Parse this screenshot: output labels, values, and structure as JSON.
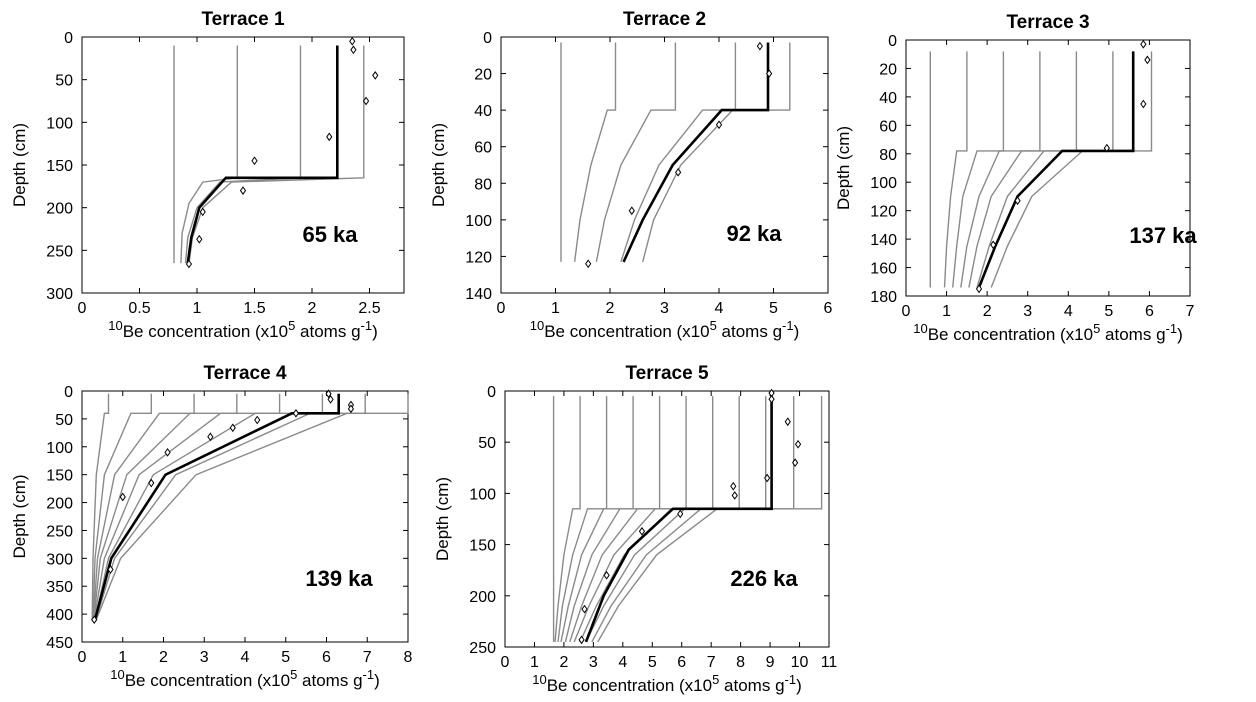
{
  "chart_data": [
    {
      "type": "line",
      "title": "Terrace 1",
      "xlabel": {
        "pre": "",
        "sup1": "10",
        "mid": "Be concentration (x10",
        "sup2": "5",
        "post": " atoms g",
        "sup3": "-1",
        "end": ")"
      },
      "ylabel": "Depth (cm)",
      "xlim": [
        0,
        2.8
      ],
      "ylim": [
        0,
        300
      ],
      "xticks": [
        "0",
        "0.5",
        "1",
        "1.5",
        "2",
        "2.5"
      ],
      "yticks": [
        "0",
        "50",
        "100",
        "150",
        "200",
        "250",
        "300"
      ],
      "age_label": "65 ka",
      "model_curves": [
        [
          [
            0.8,
            10
          ],
          [
            0.8,
            265
          ]
        ],
        [
          [
            1.35,
            10
          ],
          [
            1.35,
            165
          ],
          [
            1.05,
            170
          ],
          [
            0.93,
            195
          ],
          [
            0.87,
            230
          ],
          [
            0.86,
            265
          ]
        ],
        [
          [
            1.9,
            10
          ],
          [
            1.9,
            165
          ],
          [
            1.2,
            170
          ],
          [
            1.0,
            200
          ],
          [
            0.92,
            235
          ],
          [
            0.9,
            265
          ]
        ],
        [
          [
            2.45,
            10
          ],
          [
            2.45,
            165
          ],
          [
            1.3,
            170
          ],
          [
            1.05,
            200
          ],
          [
            0.96,
            235
          ],
          [
            0.93,
            265
          ]
        ]
      ],
      "best_fit": [
        [
          2.22,
          10
        ],
        [
          2.22,
          165
        ],
        [
          1.25,
          165
        ],
        [
          1.02,
          200
        ],
        [
          0.95,
          235
        ],
        [
          0.92,
          265
        ]
      ],
      "samples": [
        [
          2.35,
          5
        ],
        [
          2.36,
          15
        ],
        [
          2.55,
          45
        ],
        [
          2.47,
          75
        ],
        [
          2.15,
          117
        ],
        [
          1.5,
          145
        ],
        [
          1.4,
          180
        ],
        [
          1.05,
          205
        ],
        [
          1.02,
          237
        ],
        [
          0.93,
          266
        ]
      ]
    },
    {
      "type": "line",
      "title": "Terrace 2",
      "xlabel": {
        "pre": "",
        "sup1": "10",
        "mid": "Be concentration (x10",
        "sup2": "5",
        "post": " atoms g",
        "sup3": "-1",
        "end": ")"
      },
      "ylabel": "Depth (cm)",
      "xlim": [
        0,
        6
      ],
      "ylim": [
        0,
        140
      ],
      "xticks": [
        "0",
        "1",
        "2",
        "3",
        "4",
        "5",
        "6"
      ],
      "yticks": [
        "0",
        "20",
        "40",
        "60",
        "80",
        "100",
        "120",
        "140"
      ],
      "age_label": "92 ka",
      "model_curves": [
        [
          [
            1.1,
            3
          ],
          [
            1.1,
            123
          ]
        ],
        [
          [
            2.1,
            3
          ],
          [
            2.1,
            40
          ],
          [
            1.95,
            40
          ],
          [
            1.65,
            70
          ],
          [
            1.45,
            100
          ],
          [
            1.35,
            123
          ]
        ],
        [
          [
            3.2,
            3
          ],
          [
            3.2,
            40
          ],
          [
            2.75,
            40
          ],
          [
            2.2,
            70
          ],
          [
            1.9,
            100
          ],
          [
            1.75,
            123
          ]
        ],
        [
          [
            4.3,
            3
          ],
          [
            4.3,
            40
          ],
          [
            3.7,
            40
          ],
          [
            2.9,
            70
          ],
          [
            2.45,
            100
          ],
          [
            2.2,
            123
          ]
        ],
        [
          [
            5.3,
            3
          ],
          [
            5.3,
            40
          ],
          [
            4.25,
            40
          ],
          [
            3.3,
            70
          ],
          [
            2.8,
            100
          ],
          [
            2.6,
            123
          ]
        ]
      ],
      "best_fit": [
        [
          4.9,
          3
        ],
        [
          4.9,
          40
        ],
        [
          4.05,
          40
        ],
        [
          3.15,
          70
        ],
        [
          2.6,
          100
        ],
        [
          2.25,
          123
        ]
      ],
      "samples": [
        [
          4.75,
          5
        ],
        [
          4.92,
          20
        ],
        [
          4.0,
          48
        ],
        [
          3.25,
          74
        ],
        [
          2.4,
          95
        ],
        [
          1.6,
          124
        ]
      ]
    },
    {
      "type": "line",
      "title": "Terrace 3",
      "xlabel": {
        "pre": "",
        "sup1": "10",
        "mid": "Be concentration (x10",
        "sup2": "5",
        "post": " atoms g",
        "sup3": "-1",
        "end": ")"
      },
      "ylabel": "Depth (cm)",
      "xlim": [
        0,
        7
      ],
      "ylim": [
        0,
        180
      ],
      "xticks": [
        "0",
        "1",
        "2",
        "3",
        "4",
        "5",
        "6",
        "7"
      ],
      "yticks": [
        "0",
        "20",
        "40",
        "60",
        "80",
        "100",
        "120",
        "140",
        "160",
        "180"
      ],
      "age_label": "137 ka",
      "model_curves": [
        [
          [
            0.6,
            8
          ],
          [
            0.6,
            174
          ]
        ],
        [
          [
            1.5,
            8
          ],
          [
            1.5,
            78
          ],
          [
            1.25,
            78
          ],
          [
            1.1,
            110
          ],
          [
            1.0,
            145
          ],
          [
            0.95,
            174
          ]
        ],
        [
          [
            2.4,
            8
          ],
          [
            2.4,
            78
          ],
          [
            1.75,
            78
          ],
          [
            1.4,
            110
          ],
          [
            1.25,
            145
          ],
          [
            1.15,
            174
          ]
        ],
        [
          [
            3.3,
            8
          ],
          [
            3.3,
            78
          ],
          [
            2.3,
            78
          ],
          [
            1.8,
            110
          ],
          [
            1.5,
            145
          ],
          [
            1.35,
            174
          ]
        ],
        [
          [
            4.2,
            8
          ],
          [
            4.2,
            78
          ],
          [
            2.85,
            78
          ],
          [
            2.1,
            110
          ],
          [
            1.75,
            145
          ],
          [
            1.55,
            174
          ]
        ],
        [
          [
            5.1,
            8
          ],
          [
            5.1,
            78
          ],
          [
            3.4,
            78
          ],
          [
            2.5,
            110
          ],
          [
            2.05,
            145
          ],
          [
            1.75,
            174
          ]
        ],
        [
          [
            6.05,
            8
          ],
          [
            6.05,
            78
          ],
          [
            4.35,
            78
          ],
          [
            3.1,
            110
          ],
          [
            2.5,
            145
          ],
          [
            2.1,
            174
          ]
        ]
      ],
      "best_fit": [
        [
          5.6,
          8
        ],
        [
          5.6,
          78
        ],
        [
          3.85,
          78
        ],
        [
          2.75,
          110
        ],
        [
          2.2,
          145
        ],
        [
          1.8,
          174
        ]
      ],
      "samples": [
        [
          5.85,
          3
        ],
        [
          5.95,
          14
        ],
        [
          5.85,
          45
        ],
        [
          4.95,
          76
        ],
        [
          2.75,
          113
        ],
        [
          2.15,
          144
        ],
        [
          1.8,
          175
        ]
      ]
    },
    {
      "type": "line",
      "title": "Terrace 4",
      "xlabel": {
        "pre": "",
        "sup1": "10",
        "mid": "Be concentration (x10",
        "sup2": "5",
        "post": " atoms g",
        "sup3": "-1",
        "end": ")"
      },
      "ylabel": "Depth (cm)",
      "xlim": [
        0,
        8
      ],
      "ylim": [
        0,
        450
      ],
      "xticks": [
        "0",
        "1",
        "2",
        "3",
        "4",
        "5",
        "6",
        "7",
        "8"
      ],
      "yticks": [
        "0",
        "50",
        "100",
        "150",
        "200",
        "250",
        "300",
        "350",
        "400",
        "450"
      ],
      "age_label": "139 ka",
      "model_curves": [
        [
          [
            0.65,
            5
          ],
          [
            0.65,
            40
          ],
          [
            0.55,
            40
          ],
          [
            0.35,
            150
          ],
          [
            0.27,
            300
          ],
          [
            0.25,
            410
          ]
        ],
        [
          [
            1.7,
            5
          ],
          [
            1.7,
            40
          ],
          [
            1.2,
            40
          ],
          [
            0.55,
            150
          ],
          [
            0.32,
            300
          ],
          [
            0.27,
            410
          ]
        ],
        [
          [
            2.75,
            5
          ],
          [
            2.75,
            40
          ],
          [
            1.9,
            40
          ],
          [
            0.8,
            150
          ],
          [
            0.38,
            300
          ],
          [
            0.28,
            410
          ]
        ],
        [
          [
            3.8,
            5
          ],
          [
            3.8,
            40
          ],
          [
            2.65,
            40
          ],
          [
            1.1,
            150
          ],
          [
            0.45,
            300
          ],
          [
            0.29,
            410
          ]
        ],
        [
          [
            4.85,
            5
          ],
          [
            4.85,
            40
          ],
          [
            3.4,
            40
          ],
          [
            1.4,
            150
          ],
          [
            0.55,
            300
          ],
          [
            0.3,
            410
          ]
        ],
        [
          [
            5.9,
            5
          ],
          [
            5.9,
            40
          ],
          [
            4.25,
            40
          ],
          [
            1.75,
            150
          ],
          [
            0.65,
            300
          ],
          [
            0.32,
            410
          ]
        ],
        [
          [
            6.95,
            5
          ],
          [
            6.95,
            40
          ],
          [
            5.6,
            40
          ],
          [
            2.3,
            150
          ],
          [
            0.8,
            300
          ],
          [
            0.34,
            410
          ]
        ],
        [
          [
            8.0,
            5
          ],
          [
            8.0,
            40
          ],
          [
            6.5,
            40
          ],
          [
            2.8,
            150
          ],
          [
            0.95,
            300
          ],
          [
            0.35,
            410
          ]
        ]
      ],
      "best_fit": [
        [
          6.3,
          5
        ],
        [
          6.3,
          40
        ],
        [
          5.15,
          40
        ],
        [
          2.05,
          150
        ],
        [
          0.72,
          300
        ],
        [
          0.32,
          410
        ]
      ],
      "samples": [
        [
          6.05,
          5
        ],
        [
          6.1,
          15
        ],
        [
          6.6,
          25
        ],
        [
          6.6,
          32
        ],
        [
          5.25,
          40
        ],
        [
          4.3,
          52
        ],
        [
          3.7,
          66
        ],
        [
          3.15,
          82
        ],
        [
          2.1,
          110
        ],
        [
          1.7,
          165
        ],
        [
          1.0,
          190
        ],
        [
          0.7,
          320
        ],
        [
          0.3,
          410
        ]
      ]
    },
    {
      "type": "line",
      "title": "Terrace 5",
      "xlabel": {
        "pre": "",
        "sup1": "10",
        "mid": "Be concentration (x10",
        "sup2": "5",
        "post": " atoms g",
        "sup3": "-1",
        "end": ")"
      },
      "ylabel": "Depth (cm)",
      "xlim": [
        0,
        11
      ],
      "ylim": [
        0,
        250
      ],
      "xticks": [
        "0",
        "1",
        "2",
        "3",
        "4",
        "5",
        "6",
        "7",
        "8",
        "9",
        "10",
        "11"
      ],
      "yticks": [
        "0",
        "50",
        "100",
        "150",
        "200",
        "250"
      ],
      "age_label": "226 ka",
      "model_curves": [
        [
          [
            1.65,
            5
          ],
          [
            1.65,
            245
          ]
        ],
        [
          [
            2.55,
            5
          ],
          [
            2.55,
            115
          ],
          [
            2.3,
            115
          ],
          [
            2.0,
            160
          ],
          [
            1.8,
            210
          ],
          [
            1.7,
            245
          ]
        ],
        [
          [
            3.45,
            5
          ],
          [
            3.45,
            115
          ],
          [
            2.8,
            115
          ],
          [
            2.3,
            160
          ],
          [
            1.95,
            210
          ],
          [
            1.8,
            245
          ]
        ],
        [
          [
            4.35,
            5
          ],
          [
            4.35,
            115
          ],
          [
            3.35,
            115
          ],
          [
            2.6,
            160
          ],
          [
            2.15,
            210
          ],
          [
            1.9,
            245
          ]
        ],
        [
          [
            5.25,
            5
          ],
          [
            5.25,
            115
          ],
          [
            3.9,
            115
          ],
          [
            2.95,
            160
          ],
          [
            2.35,
            210
          ],
          [
            2.05,
            245
          ]
        ],
        [
          [
            6.15,
            5
          ],
          [
            6.15,
            115
          ],
          [
            4.5,
            115
          ],
          [
            3.3,
            160
          ],
          [
            2.6,
            210
          ],
          [
            2.2,
            245
          ]
        ],
        [
          [
            7.05,
            5
          ],
          [
            7.05,
            115
          ],
          [
            5.1,
            115
          ],
          [
            3.7,
            160
          ],
          [
            2.85,
            210
          ],
          [
            2.35,
            245
          ]
        ],
        [
          [
            7.95,
            5
          ],
          [
            7.95,
            115
          ],
          [
            5.65,
            115
          ],
          [
            4.05,
            160
          ],
          [
            3.1,
            210
          ],
          [
            2.55,
            245
          ]
        ],
        [
          [
            8.85,
            5
          ],
          [
            8.85,
            115
          ],
          [
            6.1,
            115
          ],
          [
            4.4,
            160
          ],
          [
            3.35,
            210
          ],
          [
            2.75,
            245
          ]
        ],
        [
          [
            9.8,
            5
          ],
          [
            9.8,
            115
          ],
          [
            6.65,
            115
          ],
          [
            4.8,
            160
          ],
          [
            3.6,
            210
          ],
          [
            2.95,
            245
          ]
        ],
        [
          [
            10.75,
            5
          ],
          [
            10.75,
            115
          ],
          [
            7.2,
            115
          ],
          [
            5.15,
            160
          ],
          [
            3.85,
            210
          ],
          [
            3.15,
            245
          ]
        ]
      ],
      "best_fit": [
        [
          9.05,
          5
        ],
        [
          9.05,
          115
        ],
        [
          5.7,
          115
        ],
        [
          4.2,
          155
        ],
        [
          3.35,
          200
        ],
        [
          2.75,
          245
        ]
      ],
      "samples": [
        [
          9.05,
          2
        ],
        [
          9.05,
          8
        ],
        [
          9.6,
          30
        ],
        [
          9.95,
          52
        ],
        [
          9.85,
          70
        ],
        [
          8.9,
          85
        ],
        [
          7.75,
          93
        ],
        [
          7.8,
          102
        ],
        [
          5.95,
          120
        ],
        [
          4.65,
          137
        ],
        [
          3.45,
          180
        ],
        [
          2.7,
          213
        ],
        [
          2.6,
          243
        ]
      ]
    }
  ]
}
